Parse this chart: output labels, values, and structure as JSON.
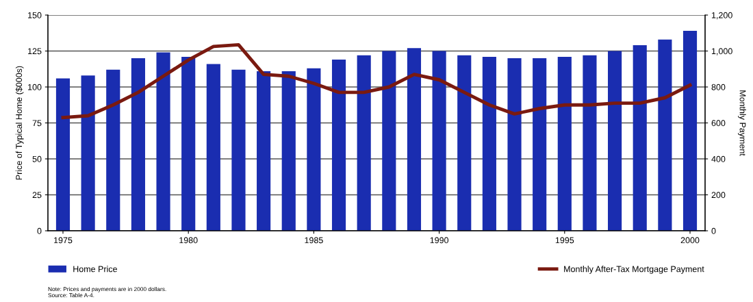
{
  "chart_data": {
    "type": "bar",
    "ylabel": "Price of Typical Home ($000s)",
    "y2label": "Monthly Payment",
    "x": [
      1975,
      1976,
      1977,
      1978,
      1979,
      1980,
      1981,
      1982,
      1983,
      1984,
      1985,
      1986,
      1987,
      1988,
      1989,
      1990,
      1991,
      1992,
      1993,
      1994,
      1995,
      1996,
      1997,
      1998,
      1999,
      2000
    ],
    "series": [
      {
        "name": "Home Price",
        "color": "#1a2db0",
        "values": [
          106,
          108,
          112,
          120,
          124,
          121,
          116,
          112,
          111,
          111,
          113,
          119,
          122,
          125,
          127,
          125,
          122,
          121,
          120,
          120,
          121,
          122,
          125,
          129,
          133,
          139
        ]
      },
      {
        "name": "Monthly After-Tax Mortgage Payment",
        "type": "line",
        "axis": "y2",
        "color": "#7a1a10",
        "values": [
          630,
          640,
          700,
          770,
          860,
          950,
          1025,
          1035,
          870,
          860,
          820,
          770,
          770,
          800,
          870,
          840,
          770,
          700,
          650,
          680,
          700,
          700,
          710,
          710,
          740,
          810
        ]
      }
    ],
    "xlim": [
      1974.4,
      2000.6
    ],
    "xticks": [
      1975,
      1980,
      1985,
      1990,
      1995,
      2000
    ],
    "ylim": [
      0,
      150
    ],
    "yticks": [
      0,
      25,
      50,
      75,
      100,
      125,
      150
    ],
    "y2lim": [
      0,
      1200
    ],
    "y2ticks": [
      0,
      {
        "value": 200,
        "label": "200"
      },
      {
        "value": 400,
        "label": "400"
      },
      {
        "value": 600,
        "label": "600"
      },
      {
        "value": 800,
        "label": "800"
      },
      {
        "value": 1000,
        "label": "1,000"
      },
      {
        "value": 1200,
        "label": "1,200"
      }
    ],
    "grid": "y",
    "legend": "bottom",
    "marker": "none",
    "line_style": "solid",
    "annotations": [
      "Note: Prices and payments are in 2000 dollars.",
      "Source: Table A-4."
    ]
  }
}
